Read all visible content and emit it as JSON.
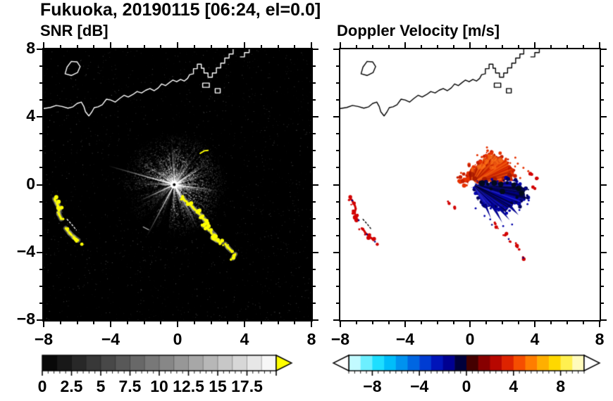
{
  "header": {
    "title": "Fukuoka, 20190115 [06:24, el=0.0]"
  },
  "coastline": {
    "main": [
      [
        -8,
        4.5
      ],
      [
        -7.6,
        4.56
      ],
      [
        -7.25,
        4.68
      ],
      [
        -6.9,
        4.62
      ],
      [
        -6.55,
        4.52
      ],
      [
        -6.25,
        4.6
      ],
      [
        -6.0,
        4.8
      ],
      [
        -5.75,
        4.88
      ],
      [
        -5.6,
        4.62
      ],
      [
        -5.5,
        4.3
      ],
      [
        -5.3,
        4.06
      ],
      [
        -5.12,
        4.3
      ],
      [
        -4.98,
        4.55
      ],
      [
        -4.75,
        4.6
      ],
      [
        -4.5,
        4.72
      ],
      [
        -4.25,
        5.05
      ],
      [
        -4.0,
        5.0
      ],
      [
        -3.72,
        4.88
      ],
      [
        -3.45,
        5.1
      ],
      [
        -3.2,
        5.28
      ],
      [
        -2.95,
        5.18
      ],
      [
        -2.68,
        5.32
      ],
      [
        -2.42,
        5.5
      ],
      [
        -2.15,
        5.42
      ],
      [
        -1.9,
        5.58
      ],
      [
        -1.65,
        5.68
      ],
      [
        -1.4,
        5.55
      ],
      [
        -1.15,
        5.72
      ],
      [
        -0.95,
        5.95
      ],
      [
        -0.72,
        5.85
      ],
      [
        -0.5,
        6.02
      ],
      [
        -0.28,
        6.18
      ],
      [
        -0.05,
        6.08
      ],
      [
        0.18,
        6.22
      ],
      [
        0.4,
        6.12
      ],
      [
        0.6,
        6.28
      ],
      [
        0.72,
        6.5
      ],
      [
        0.95,
        6.55
      ],
      [
        0.95,
        6.85
      ],
      [
        1.18,
        6.85
      ],
      [
        1.18,
        7.12
      ],
      [
        1.42,
        7.12
      ],
      [
        1.42,
        6.88
      ],
      [
        1.58,
        6.88
      ],
      [
        1.58,
        6.6
      ],
      [
        1.82,
        6.6
      ],
      [
        1.82,
        6.35
      ],
      [
        2.08,
        6.35
      ],
      [
        2.08,
        6.6
      ],
      [
        2.32,
        6.6
      ],
      [
        2.32,
        6.9
      ],
      [
        2.58,
        6.9
      ],
      [
        2.58,
        7.18
      ],
      [
        2.82,
        7.18
      ],
      [
        2.82,
        7.48
      ],
      [
        3.08,
        7.48
      ],
      [
        3.08,
        7.72
      ],
      [
        3.32,
        7.72
      ],
      [
        3.32,
        8.0
      ]
    ],
    "island": [
      [
        -6.72,
        6.55
      ],
      [
        -6.6,
        6.95
      ],
      [
        -6.35,
        7.28
      ],
      [
        -6.0,
        7.25
      ],
      [
        -5.82,
        6.98
      ],
      [
        -5.98,
        6.62
      ],
      [
        -6.35,
        6.45
      ]
    ],
    "fragments": [
      [
        [
          3.75,
          7.55
        ],
        [
          4.0,
          7.55
        ],
        [
          4.0,
          7.8
        ],
        [
          4.28,
          7.8
        ],
        [
          4.28,
          8.0
        ]
      ]
    ],
    "dashed": [
      [
        [
          -6.6,
          -2.05
        ],
        [
          -6.32,
          -2.35
        ],
        [
          -6.05,
          -2.68
        ]
      ]
    ],
    "docks": [
      [
        [
          1.5,
          5.75
        ],
        [
          1.9,
          5.75
        ],
        [
          1.9,
          6.0
        ],
        [
          1.5,
          6.0
        ]
      ],
      [
        [
          2.25,
          5.42
        ],
        [
          2.55,
          5.42
        ],
        [
          2.55,
          5.68
        ],
        [
          2.25,
          5.68
        ]
      ]
    ]
  },
  "echo_clusters": {
    "west_arc1": [
      [
        -7.35,
        -0.85
      ],
      [
        -7.2,
        -1.12
      ],
      [
        -7.05,
        -1.42
      ],
      [
        -7.1,
        -1.72
      ],
      [
        -6.95,
        -2.02
      ]
    ],
    "west_arc2": [
      [
        -6.68,
        -2.58
      ],
      [
        -6.45,
        -2.86
      ],
      [
        -6.2,
        -3.1
      ],
      [
        -5.95,
        -3.28
      ]
    ],
    "west_dot": [
      [
        -5.72,
        -3.52
      ]
    ]
  },
  "chart_data": [
    {
      "type": "heatmap",
      "title": "SNR [dB]",
      "xlim": [
        -8,
        8
      ],
      "ylim": [
        -8,
        8
      ],
      "xtick_values": [
        -8,
        -4,
        0,
        4,
        8
      ],
      "xtick_labels": [
        "−8",
        "−4",
        "0",
        "4",
        "8"
      ],
      "ytick_values": [
        8,
        4,
        0,
        -4,
        -8
      ],
      "ytick_labels": [
        "8",
        "4",
        "0",
        "−4",
        "−8"
      ],
      "background": "#000000",
      "coast_color": "#ffffff",
      "radar_center": [
        -0.2,
        0.0
      ],
      "clutter_fan": {
        "n_rays": 170,
        "max_range": 3.2
      },
      "bright_rays": [
        {
          "deg": 164,
          "len": 4.0
        },
        {
          "deg": 242,
          "len": 3.4
        },
        {
          "deg": 205,
          "len": 2.2
        },
        {
          "deg": 300,
          "len": 2.4
        },
        {
          "deg": 352,
          "len": 2.6
        },
        {
          "deg": 32,
          "len": 2.3
        }
      ],
      "dark_sectors": [
        {
          "deg0": 195,
          "deg1": 262,
          "len": 3.5,
          "alpha": 0.5
        },
        {
          "deg0": 250,
          "deg1": 262,
          "len": 3.2,
          "alpha": 0.85
        },
        {
          "deg0": 228,
          "deg1": 236,
          "len": 3.0,
          "alpha": 0.8
        },
        {
          "deg0": 188,
          "deg1": 197,
          "len": 2.8,
          "alpha": 0.8
        },
        {
          "deg0": 279,
          "deg1": 284,
          "len": 2.4,
          "alpha": 0.8
        }
      ],
      "echo_color": "#ffff00",
      "echo_glow": "#a8a898",
      "coastal_echo_line": [
        [
          0.35,
          -0.8
        ],
        [
          0.55,
          -1.0
        ],
        [
          0.75,
          -1.15
        ],
        [
          0.95,
          -1.4
        ],
        [
          1.2,
          -1.6
        ],
        [
          1.45,
          -1.85
        ],
        [
          1.6,
          -2.05
        ],
        [
          1.75,
          -2.3
        ],
        [
          1.55,
          -2.45
        ],
        [
          1.8,
          -2.6
        ],
        [
          2.0,
          -2.75
        ],
        [
          2.2,
          -2.95
        ],
        [
          2.1,
          -3.15
        ],
        [
          2.35,
          -3.3
        ],
        [
          2.6,
          -3.4
        ],
        [
          2.85,
          -3.5
        ],
        [
          3.0,
          -3.7
        ],
        [
          3.2,
          -3.9
        ],
        [
          3.45,
          -4.1
        ],
        [
          3.3,
          -4.35
        ]
      ],
      "yellow_streak": [
        [
          1.35,
          1.85
        ],
        [
          1.6,
          2.0
        ],
        [
          1.82,
          2.03
        ]
      ],
      "faint_dash": [
        [
          -2.05,
          -2.5
        ],
        [
          -1.72,
          -2.66
        ]
      ]
    },
    {
      "type": "heatmap",
      "title": "Doppler Velocity [m/s]",
      "xlim": [
        -8,
        8
      ],
      "ylim": [
        -8,
        8
      ],
      "xtick_values": [
        -8,
        -4,
        0,
        4,
        8
      ],
      "xtick_labels": [
        "−8",
        "−4",
        "0",
        "4",
        "8"
      ],
      "ytick_values": [
        8,
        4,
        0,
        -4,
        -8
      ],
      "background": "#ffffff",
      "coast_color": "#000000",
      "radar_center": [
        0.1,
        0.05
      ],
      "positive_region": {
        "color": "#e63200",
        "dark": "#a01400",
        "bright": "#ff7d1e",
        "points": [
          [
            -0.62,
            0.3
          ],
          [
            -0.2,
            0.45
          ],
          [
            -0.05,
            0.75
          ],
          [
            0.1,
            1.05
          ],
          [
            0.3,
            0.92
          ],
          [
            0.5,
            1.28
          ],
          [
            0.7,
            1.18
          ],
          [
            0.85,
            1.62
          ],
          [
            1.0,
            1.5
          ],
          [
            1.15,
            1.88
          ],
          [
            1.32,
            1.7
          ],
          [
            1.5,
            1.85
          ],
          [
            1.68,
            1.6
          ],
          [
            1.9,
            1.68
          ],
          [
            2.05,
            1.45
          ],
          [
            2.3,
            1.38
          ],
          [
            2.4,
            1.1
          ],
          [
            2.6,
            0.98
          ],
          [
            2.5,
            0.72
          ],
          [
            2.65,
            0.48
          ],
          [
            2.45,
            0.35
          ],
          [
            2.2,
            0.28
          ],
          [
            1.95,
            0.12
          ],
          [
            1.6,
            0.1
          ],
          [
            1.2,
            0.18
          ],
          [
            0.8,
            0.1
          ],
          [
            0.5,
            0.2
          ],
          [
            0.2,
            0.1
          ],
          [
            -0.05,
            0.18
          ],
          [
            -0.3,
            0.12
          ]
        ],
        "inner_dark": [
          [
            0.3,
            0.35
          ],
          [
            0.9,
            0.32
          ],
          [
            1.5,
            0.3
          ],
          [
            2.1,
            0.35
          ],
          [
            2.45,
            0.55
          ],
          [
            0.1,
            0.6
          ]
        ],
        "specks": [
          [
            2.95,
            1.25
          ],
          [
            3.3,
            1.0
          ],
          [
            3.6,
            0.8
          ],
          [
            1.05,
            2.2
          ],
          [
            0.45,
            1.75
          ],
          [
            -0.55,
            0.7
          ],
          [
            2.8,
            1.6
          ],
          [
            3.1,
            0.4
          ]
        ]
      },
      "negative_region": {
        "color": "#0000aa",
        "dark": "#000060",
        "black": "#000a14",
        "points": [
          [
            0.28,
            0.08
          ],
          [
            0.55,
            -0.02
          ],
          [
            0.85,
            0.12
          ],
          [
            1.15,
            0.02
          ],
          [
            1.5,
            0.18
          ],
          [
            1.9,
            0.08
          ],
          [
            2.3,
            0.22
          ],
          [
            2.6,
            0.08
          ],
          [
            2.9,
            0.12
          ],
          [
            3.2,
            -0.12
          ],
          [
            3.45,
            -0.3
          ],
          [
            3.28,
            -0.55
          ],
          [
            3.5,
            -0.8
          ],
          [
            3.18,
            -0.92
          ],
          [
            3.0,
            -1.15
          ],
          [
            2.7,
            -1.1
          ],
          [
            2.55,
            -1.38
          ],
          [
            2.3,
            -1.32
          ],
          [
            2.18,
            -1.58
          ],
          [
            1.95,
            -1.48
          ],
          [
            1.75,
            -1.28
          ],
          [
            1.5,
            -1.45
          ],
          [
            1.3,
            -1.18
          ],
          [
            1.1,
            -1.3
          ],
          [
            0.95,
            -1.02
          ],
          [
            0.75,
            -1.1
          ],
          [
            0.6,
            -0.82
          ],
          [
            0.45,
            -0.5
          ],
          [
            0.3,
            -0.2
          ]
        ],
        "junction_black": [
          [
            0.75,
            0.08
          ],
          [
            1.1,
            0.03
          ],
          [
            1.5,
            0.1
          ],
          [
            1.9,
            0.03
          ],
          [
            2.3,
            0.1
          ],
          [
            2.7,
            -0.02
          ],
          [
            3.0,
            -0.22
          ],
          [
            2.0,
            -0.4
          ],
          [
            2.9,
            -0.75
          ],
          [
            3.2,
            -0.5
          ],
          [
            1.3,
            -0.25
          ]
        ],
        "spurs": [
          [
            1.35,
            -1.15,
            2.0,
            -2.25,
            0.12
          ],
          [
            1.8,
            -1.35,
            2.45,
            -2.1,
            0.1
          ],
          [
            2.5,
            -1.3,
            3.0,
            -1.8,
            0.09
          ],
          [
            0.95,
            -1.2,
            1.3,
            -2.0,
            0.08
          ]
        ],
        "specks": [
          [
            0.9,
            -1.85
          ],
          [
            1.25,
            -2.05
          ],
          [
            3.05,
            -1.5
          ],
          [
            3.55,
            -1.15
          ],
          [
            0.35,
            -1.4
          ],
          [
            2.05,
            -2.45
          ],
          [
            2.6,
            -2.35
          ]
        ]
      },
      "cluster_color": "#d20000",
      "cluster_accent": "#000082",
      "small_echoes": [
        [
          1.45,
          -2.35,
          "b"
        ],
        [
          1.7,
          -2.6,
          ""
        ],
        [
          2.15,
          -3.0,
          ""
        ],
        [
          2.45,
          -3.3,
          "b"
        ],
        [
          2.8,
          -3.5,
          ""
        ],
        [
          3.05,
          -3.8,
          ""
        ],
        [
          3.3,
          -4.3,
          "b"
        ],
        [
          -1.25,
          -1.1,
          ""
        ],
        [
          -1.05,
          -1.3,
          ""
        ],
        [
          3.75,
          0.65,
          ""
        ],
        [
          4.05,
          0.3,
          ""
        ],
        [
          3.9,
          -0.2,
          ""
        ]
      ]
    }
  ],
  "colorbars": [
    {
      "label_values": [
        0,
        2.5,
        5,
        7.5,
        10,
        12.5,
        15,
        17.5
      ],
      "labels": [
        "0",
        "2.5",
        "5",
        "7.5",
        "10",
        "12.5",
        "15",
        "17.5"
      ],
      "range": [
        0,
        20
      ],
      "colormap": "grayscale",
      "blocks": 16,
      "over_color": "#ffff00"
    },
    {
      "label_values": [
        -8,
        -4,
        0,
        4,
        8
      ],
      "labels": [
        "−8",
        "−4",
        "0",
        "4",
        "8"
      ],
      "range": [
        -10,
        10
      ],
      "colormap": "doppler",
      "blocks": 20,
      "under_color": "#ffffff",
      "over_color": "#ffffff",
      "stops": [
        [
          -10,
          "#e8ffff"
        ],
        [
          -9,
          "#9cf4ff"
        ],
        [
          -8,
          "#3ce9ff"
        ],
        [
          -7,
          "#00d2ff"
        ],
        [
          -6,
          "#00a8f5"
        ],
        [
          -5,
          "#007ce8"
        ],
        [
          -4,
          "#0050dc"
        ],
        [
          -3,
          "#0028c8"
        ],
        [
          -2,
          "#0000aa"
        ],
        [
          -1,
          "#000078"
        ],
        [
          -0.4,
          "#000030"
        ],
        [
          0,
          "#140000"
        ],
        [
          0.4,
          "#3c0000"
        ],
        [
          1,
          "#6e0000"
        ],
        [
          2,
          "#a00000"
        ],
        [
          3,
          "#cd0d00"
        ],
        [
          4,
          "#ec3800"
        ],
        [
          5,
          "#ff6400"
        ],
        [
          6,
          "#ff9600"
        ],
        [
          7,
          "#ffc800"
        ],
        [
          8,
          "#ffe800"
        ],
        [
          9,
          "#fff7a0"
        ],
        [
          10,
          "#ffffd8"
        ]
      ]
    }
  ]
}
